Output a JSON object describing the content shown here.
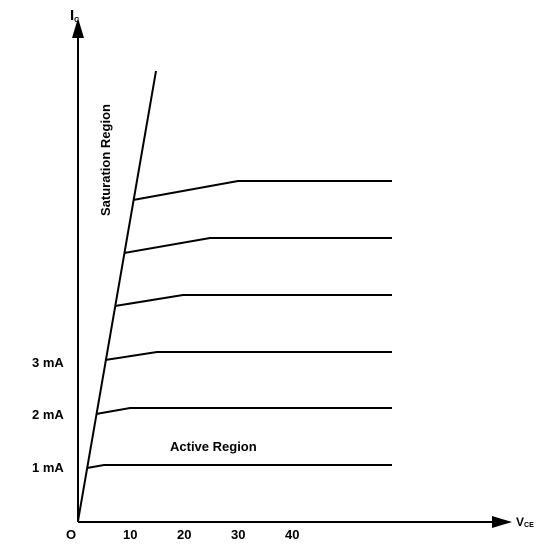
{
  "axes": {
    "y_label_main": "I",
    "y_label_sub": "C",
    "x_label_main": "V",
    "x_label_sub": "CE",
    "origin_label": "O",
    "x_ticks": [
      "10",
      "20",
      "30",
      "40"
    ],
    "y_ticks": [
      "1 mA",
      "2 mA",
      "3 mA"
    ]
  },
  "regions": {
    "saturation": "Saturation Region",
    "active": "Active Region"
  },
  "curve_count": 6
}
